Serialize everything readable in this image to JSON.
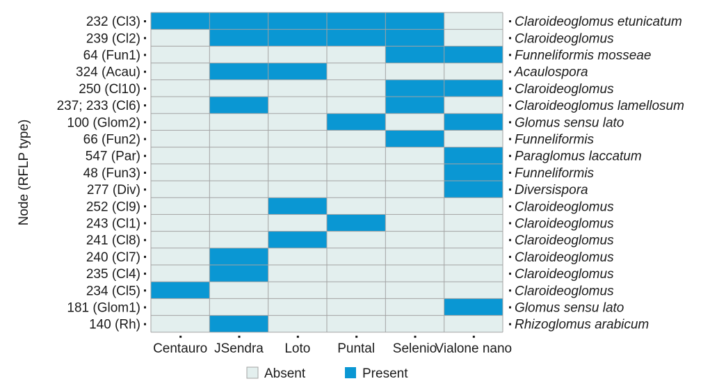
{
  "chart_data": {
    "type": "heatmap",
    "ylabel": "Node (RFLP type)",
    "xlabel": "",
    "columns": [
      "Centauro",
      "JSendra",
      "Loto",
      "Puntal",
      "Selenio",
      "Vialone nano"
    ],
    "rows": [
      {
        "node": "232 (Cl3)",
        "taxon": "Claroideoglomus etunicatum",
        "values": [
          1,
          1,
          1,
          1,
          1,
          0
        ]
      },
      {
        "node": "239 (Cl2)",
        "taxon": "Claroideoglomus",
        "values": [
          0,
          1,
          1,
          1,
          1,
          0
        ]
      },
      {
        "node": "64 (Fun1)",
        "taxon": "Funneliformis mosseae",
        "values": [
          0,
          0,
          0,
          0,
          1,
          1
        ]
      },
      {
        "node": "324 (Acau)",
        "taxon": "Acaulospora",
        "values": [
          0,
          1,
          1,
          0,
          0,
          0
        ]
      },
      {
        "node": "250 (Cl10)",
        "taxon": "Claroideoglomus",
        "values": [
          0,
          0,
          0,
          0,
          1,
          1
        ]
      },
      {
        "node": "237; 233 (Cl6)",
        "taxon": "Claroideoglomus lamellosum",
        "values": [
          0,
          1,
          0,
          0,
          1,
          0
        ]
      },
      {
        "node": "100 (Glom2)",
        "taxon": "Glomus sensu lato",
        "values": [
          0,
          0,
          0,
          1,
          0,
          1
        ]
      },
      {
        "node": "66 (Fun2)",
        "taxon": "Funneliformis",
        "values": [
          0,
          0,
          0,
          0,
          1,
          0
        ]
      },
      {
        "node": "547 (Par)",
        "taxon": "Paraglomus laccatum",
        "values": [
          0,
          0,
          0,
          0,
          0,
          1
        ]
      },
      {
        "node": "48 (Fun3)",
        "taxon": "Funneliformis",
        "values": [
          0,
          0,
          0,
          0,
          0,
          1
        ]
      },
      {
        "node": "277 (Div)",
        "taxon": "Diversispora",
        "values": [
          0,
          0,
          0,
          0,
          0,
          1
        ]
      },
      {
        "node": "252 (Cl9)",
        "taxon": "Claroideoglomus",
        "values": [
          0,
          0,
          1,
          0,
          0,
          0
        ]
      },
      {
        "node": "243 (Cl1)",
        "taxon": "Claroideoglomus",
        "values": [
          0,
          0,
          0,
          1,
          0,
          0
        ]
      },
      {
        "node": "241 (Cl8)",
        "taxon": "Claroideoglomus",
        "values": [
          0,
          0,
          1,
          0,
          0,
          0
        ]
      },
      {
        "node": "240 (Cl7)",
        "taxon": "Claroideoglomus",
        "values": [
          0,
          1,
          0,
          0,
          0,
          0
        ]
      },
      {
        "node": "235 (Cl4)",
        "taxon": "Claroideoglomus",
        "values": [
          0,
          1,
          0,
          0,
          0,
          0
        ]
      },
      {
        "node": "234 (Cl5)",
        "taxon": "Claroideoglomus",
        "values": [
          1,
          0,
          0,
          0,
          0,
          0
        ]
      },
      {
        "node": "181 (Glom1)",
        "taxon": "Glomus sensu lato",
        "values": [
          0,
          0,
          0,
          0,
          0,
          1
        ]
      },
      {
        "node": "140 (Rh)",
        "taxon": "Rhizoglomus arabicum",
        "values": [
          0,
          1,
          0,
          0,
          0,
          0
        ]
      }
    ],
    "legend": {
      "position": "bottom",
      "entries": [
        {
          "label": "Absent",
          "value": 0,
          "color": "#e3efee"
        },
        {
          "label": "Present",
          "value": 1,
          "color": "#0a97d3"
        }
      ]
    },
    "grid": true,
    "gridColor": "#a3a3a3"
  }
}
